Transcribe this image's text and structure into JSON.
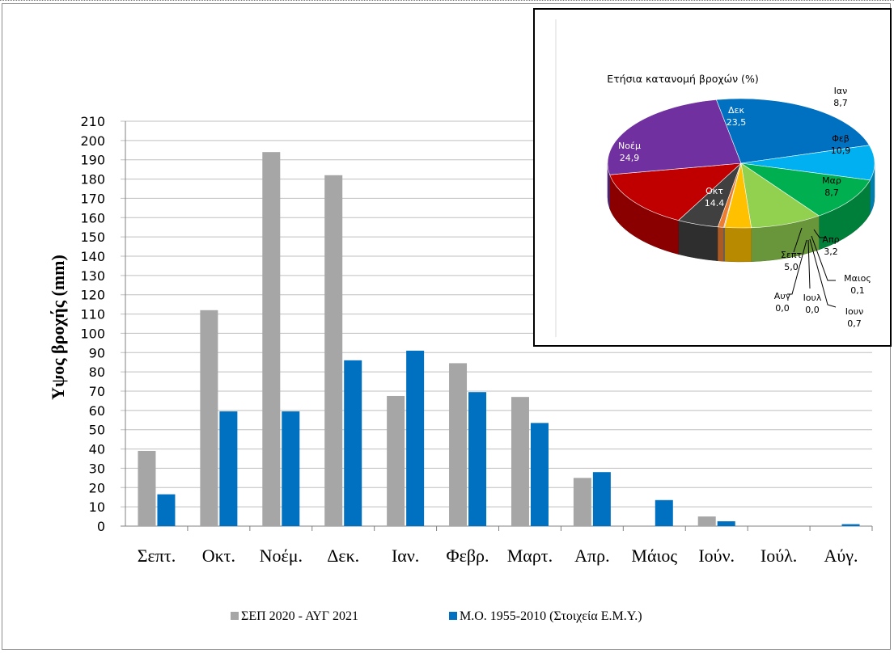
{
  "chart_data": [
    {
      "type": "bar",
      "ylabel": "Υψος βροχής (mm)",
      "xlabel": "",
      "ylim": [
        0,
        210
      ],
      "yticks": [
        0,
        10,
        20,
        30,
        40,
        50,
        60,
        70,
        80,
        90,
        100,
        110,
        120,
        130,
        140,
        150,
        160,
        170,
        180,
        190,
        200,
        210
      ],
      "grid": true,
      "legend_position": "bottom",
      "categories": [
        "Σεπτ.",
        "Οκτ.",
        "Νοέμ.",
        "Δεκ.",
        "Ιαν.",
        "Φεβρ.",
        "Μαρτ.",
        "Απρ.",
        "Μάιος",
        "Ιούν.",
        "Ιούλ.",
        "Αύγ."
      ],
      "series": [
        {
          "name": "ΣΕΠ 2020 - ΑΥΓ 2021",
          "color": "#a6a6a6",
          "values": [
            39,
            112,
            194,
            182,
            67.5,
            84.5,
            67,
            25,
            0,
            5,
            0,
            0
          ]
        },
        {
          "name": "Μ.Ο. 1955-2010  (Στοιχεία Ε.Μ.Υ.)",
          "color": "#0070c0",
          "values": [
            16.5,
            59.5,
            59.5,
            86,
            91,
            69.5,
            53.5,
            28,
            13.5,
            2.5,
            0,
            1
          ]
        }
      ]
    },
    {
      "type": "pie",
      "title": "Ετήσια κατανομή βροχών (%)",
      "slices": [
        {
          "label": "Σεπτ",
          "value_text": "5,0",
          "value": 5.0,
          "color": "#404040"
        },
        {
          "label": "Οκτ",
          "value_text": "14.4",
          "value": 14.4,
          "color": "#c00000"
        },
        {
          "label": "Νοέμ",
          "value_text": "24,9",
          "value": 24.9,
          "color": "#7030a0"
        },
        {
          "label": "Δεκ",
          "value_text": "23,5",
          "value": 23.5,
          "color": "#0070c0"
        },
        {
          "label": "Ιαν",
          "value_text": "8,7",
          "value": 8.7,
          "color": "#00b0f0"
        },
        {
          "label": "Φεβ",
          "value_text": "10,9",
          "value": 10.9,
          "color": "#00b050"
        },
        {
          "label": "Μαρ",
          "value_text": "8,7",
          "value": 8.7,
          "color": "#92d050"
        },
        {
          "label": "Απρ",
          "value_text": "3,2",
          "value": 3.2,
          "color": "#ffc000"
        },
        {
          "label": "Μαιος",
          "value_text": "0,1",
          "value": 0.1,
          "color": "#5b9bd5"
        },
        {
          "label": "Ιουν",
          "value_text": "0,7",
          "value": 0.7,
          "color": "#ed7d31"
        },
        {
          "label": "Ιουλ",
          "value_text": "0,0",
          "value": 0.0,
          "color": "#a5a5a5"
        },
        {
          "label": "Αυγ",
          "value_text": "0,0",
          "value": 0.0,
          "color": "#264478"
        }
      ]
    }
  ]
}
